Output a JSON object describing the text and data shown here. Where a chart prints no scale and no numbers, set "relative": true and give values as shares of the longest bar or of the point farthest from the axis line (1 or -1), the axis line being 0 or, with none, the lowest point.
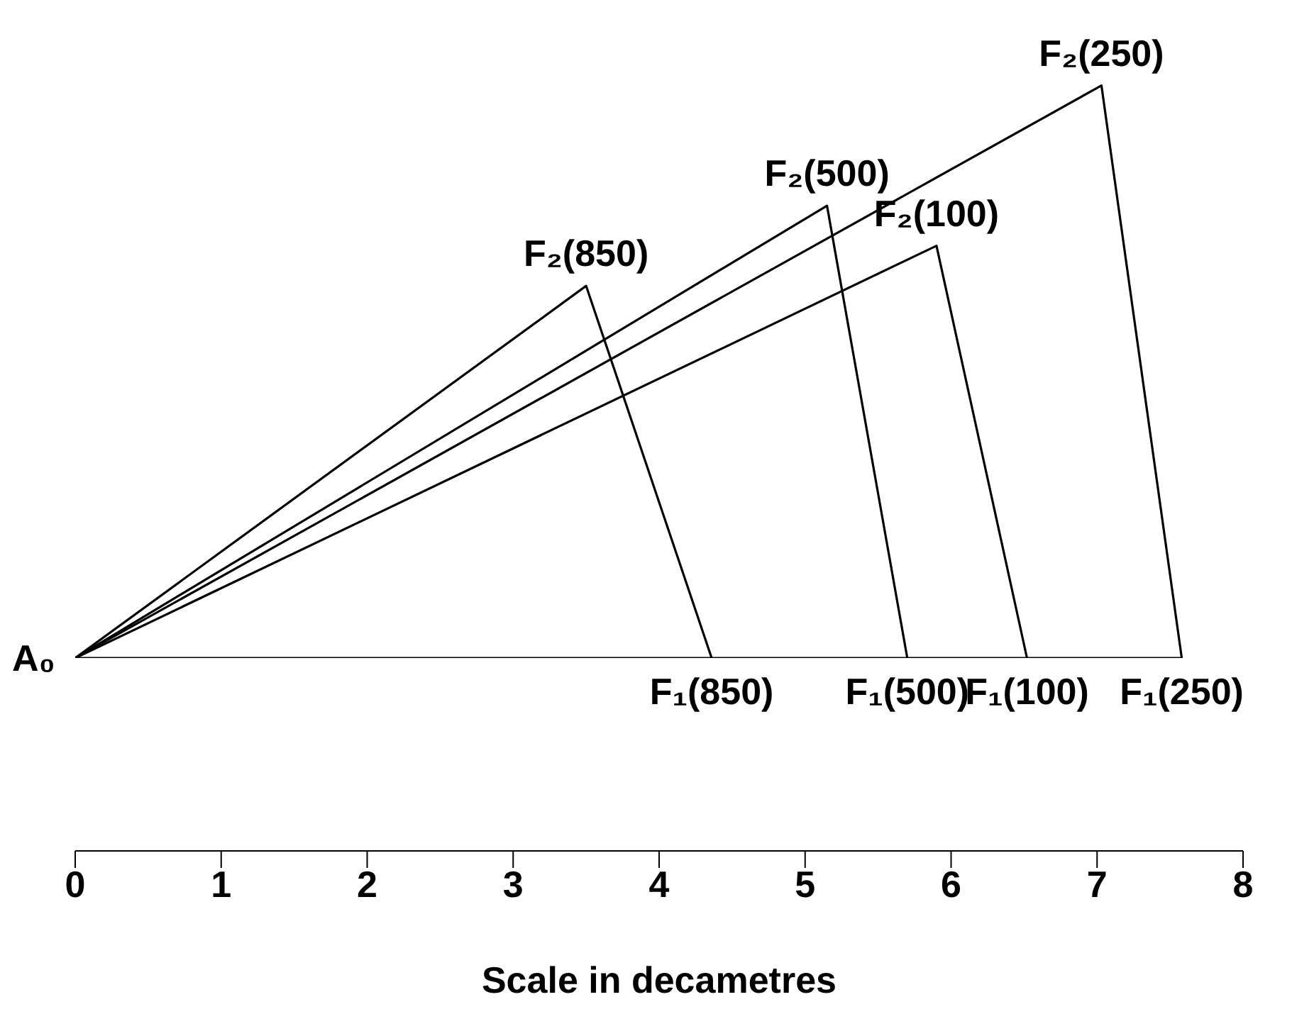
{
  "chart_data": {
    "type": "line",
    "xlabel": "Scale in decametres",
    "xlim": [
      0,
      8
    ],
    "xticks": [
      0,
      1,
      2,
      3,
      4,
      5,
      6,
      7,
      8
    ],
    "relative": true,
    "tick_labels": "x",
    "marker": "none",
    "line_style": "solid",
    "series": [
      {
        "color": "#000000",
        "x": [
          0,
          3.5,
          4.36
        ],
        "values": [
          0,
          0.65,
          0
        ]
      },
      {
        "color": "#000000",
        "x": [
          0,
          5.15,
          5.7
        ],
        "values": [
          0,
          0.79,
          0
        ]
      },
      {
        "color": "#000000",
        "x": [
          0,
          5.9,
          6.52
        ],
        "values": [
          0,
          0.72,
          0
        ]
      },
      {
        "color": "#000000",
        "x": [
          0,
          7.03,
          7.58
        ],
        "values": [
          0,
          1,
          0
        ]
      },
      {
        "color": "#000000",
        "x": [
          0,
          7.58
        ],
        "values": [
          0,
          0
        ]
      }
    ],
    "annotations": [
      {
        "text": "A₀",
        "x": 0,
        "y": 0
      },
      {
        "text": "F₂(850)",
        "x": 3.5,
        "y": 0.65
      },
      {
        "text": "F₂(500)",
        "x": 5.15,
        "y": 0.79
      },
      {
        "text": "F₂(100)",
        "x": 5.9,
        "y": 0.72
      },
      {
        "text": "F₂(250)",
        "x": 7.03,
        "y": 1
      },
      {
        "text": "F₁(850)",
        "x": 4.36,
        "y": 0
      },
      {
        "text": "F₁(500)",
        "x": 5.7,
        "y": 0
      },
      {
        "text": "F₁(100)",
        "x": 6.52,
        "y": 0
      },
      {
        "text": "F₁(250)",
        "x": 7.58,
        "y": 0
      }
    ]
  }
}
